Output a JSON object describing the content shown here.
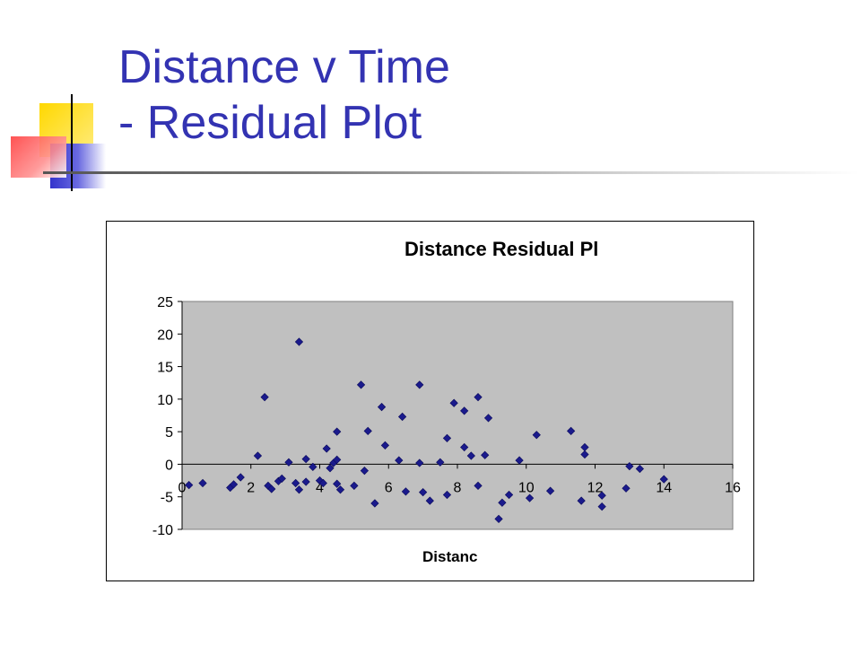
{
  "slide": {
    "title_line1": "Distance v Time",
    "title_line2": "- Residual Plot"
  },
  "colors": {
    "title": "#3333b2",
    "plot_area": "#c0c0c0",
    "marker": "#1a1a8c"
  },
  "chart_data": {
    "type": "scatter",
    "title": "Distance Residual Pl",
    "xlabel": "Distanc",
    "ylabel": "",
    "xlim": [
      0,
      16
    ],
    "ylim": [
      -10,
      25
    ],
    "xticks": [
      "0",
      "2",
      "4",
      "6",
      "8",
      "10",
      "12",
      "14",
      "16"
    ],
    "yticks": [
      "25",
      "20",
      "15",
      "10",
      "5",
      "0",
      "-5",
      "-10"
    ],
    "grid": false,
    "legend": "none",
    "series": [
      {
        "points": [
          [
            0.2,
            -3.2
          ],
          [
            0.6,
            -2.9
          ],
          [
            1.4,
            -3.6
          ],
          [
            1.5,
            -3.1
          ],
          [
            1.7,
            -2.0
          ],
          [
            2.2,
            1.3
          ],
          [
            2.4,
            10.3
          ],
          [
            2.5,
            -3.3
          ],
          [
            2.6,
            -3.8
          ],
          [
            2.8,
            -2.6
          ],
          [
            2.9,
            -2.2
          ],
          [
            3.1,
            0.3
          ],
          [
            3.3,
            -2.9
          ],
          [
            3.4,
            -3.9
          ],
          [
            3.4,
            18.8
          ],
          [
            3.6,
            0.8
          ],
          [
            3.6,
            -2.7
          ],
          [
            3.8,
            -0.4
          ],
          [
            4.0,
            -2.5
          ],
          [
            4.1,
            -2.9
          ],
          [
            4.2,
            2.4
          ],
          [
            4.3,
            -0.6
          ],
          [
            4.4,
            0.2
          ],
          [
            4.5,
            -3.0
          ],
          [
            4.5,
            5.0
          ],
          [
            4.6,
            -3.9
          ],
          [
            4.5,
            0.7
          ],
          [
            5.0,
            -3.3
          ],
          [
            5.2,
            12.2
          ],
          [
            5.3,
            -1.0
          ],
          [
            5.4,
            5.1
          ],
          [
            5.6,
            -6.0
          ],
          [
            5.8,
            8.8
          ],
          [
            5.9,
            2.9
          ],
          [
            6.3,
            0.6
          ],
          [
            6.4,
            7.3
          ],
          [
            6.5,
            -4.2
          ],
          [
            6.9,
            12.2
          ],
          [
            6.9,
            0.2
          ],
          [
            7.0,
            -4.3
          ],
          [
            7.2,
            -5.6
          ],
          [
            7.5,
            0.3
          ],
          [
            7.7,
            4.0
          ],
          [
            7.7,
            -4.7
          ],
          [
            7.9,
            9.4
          ],
          [
            8.2,
            2.6
          ],
          [
            8.2,
            8.2
          ],
          [
            8.4,
            1.3
          ],
          [
            8.6,
            10.3
          ],
          [
            8.6,
            -3.3
          ],
          [
            8.8,
            1.4
          ],
          [
            8.9,
            7.1
          ],
          [
            9.2,
            -8.4
          ],
          [
            9.3,
            -5.9
          ],
          [
            9.5,
            -4.7
          ],
          [
            9.8,
            0.6
          ],
          [
            10.1,
            -5.2
          ],
          [
            10.3,
            4.5
          ],
          [
            10.7,
            -4.1
          ],
          [
            11.3,
            5.1
          ],
          [
            11.6,
            -5.6
          ],
          [
            11.7,
            2.6
          ],
          [
            11.7,
            1.5
          ],
          [
            12.2,
            -6.5
          ],
          [
            12.2,
            -4.8
          ],
          [
            12.9,
            -3.7
          ],
          [
            13.0,
            -0.3
          ],
          [
            13.3,
            -0.7
          ],
          [
            14.0,
            -2.3
          ]
        ]
      }
    ]
  }
}
